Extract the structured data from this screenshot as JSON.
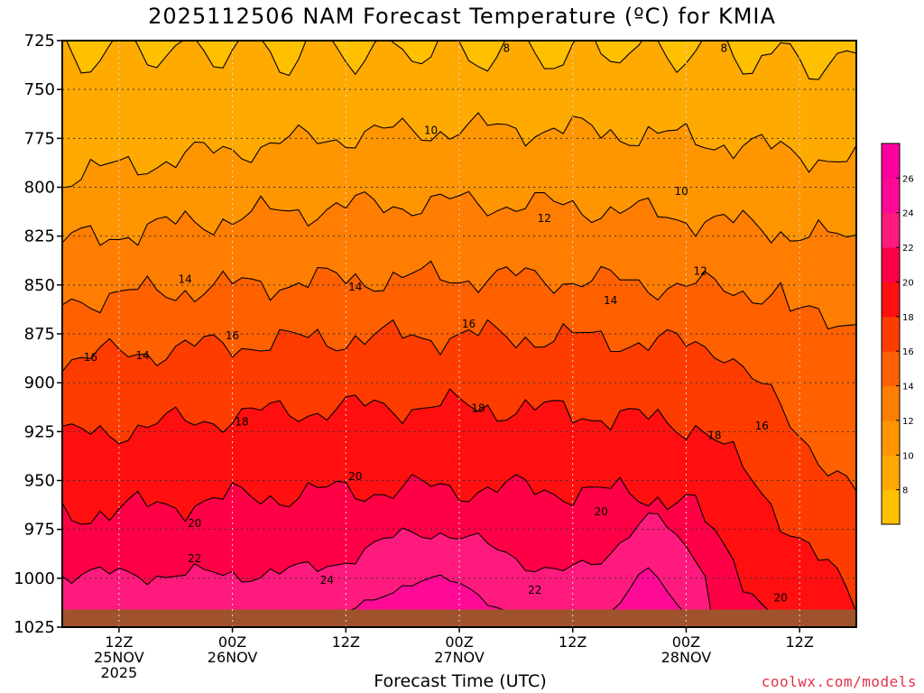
{
  "title": "2025112506 NAM Forecast Temperature (ºC) for KMIA",
  "credit": "coolwx.com/models",
  "chart_data": {
    "type": "contour",
    "title": "2025112506 NAM Forecast Temperature (ºC) for KMIA",
    "xlabel": "Forecast Time (UTC)",
    "ylabel": "",
    "y_reversed": true,
    "grid": true,
    "ylim": [
      1025,
      725
    ],
    "yticks": [
      725,
      750,
      775,
      800,
      825,
      850,
      875,
      900,
      925,
      950,
      975,
      1000,
      1025
    ],
    "xlim_hours": [
      6,
      90
    ],
    "xticks": [
      {
        "hour": 12,
        "lines": [
          "12Z",
          "25NOV",
          "2025"
        ]
      },
      {
        "hour": 24,
        "lines": [
          "00Z",
          "26NOV"
        ]
      },
      {
        "hour": 36,
        "lines": [
          "12Z"
        ]
      },
      {
        "hour": 48,
        "lines": [
          "00Z",
          "27NOV"
        ]
      },
      {
        "hour": 60,
        "lines": [
          "12Z"
        ]
      },
      {
        "hour": 72,
        "lines": [
          "00Z",
          "28NOV"
        ]
      },
      {
        "hour": 84,
        "lines": [
          "12Z"
        ]
      }
    ],
    "colorbar": {
      "levels": [
        8,
        10,
        12,
        14,
        16,
        18,
        20,
        22,
        24,
        26
      ],
      "colors": [
        "#ffc000",
        "#ffaa00",
        "#ff9500",
        "#ff7d00",
        "#ff6000",
        "#ff3c00",
        "#ff0f0f",
        "#ff0047",
        "#ff1a7d",
        "#ff0a96",
        "#ff009f"
      ]
    },
    "contour_levels": [
      8,
      10,
      12,
      14,
      16,
      18,
      20,
      22,
      24
    ],
    "contour_labels": [
      {
        "text": "8",
        "hour": 53,
        "p": 729
      },
      {
        "text": "8",
        "hour": 76,
        "p": 729
      },
      {
        "text": "10",
        "hour": 45,
        "p": 771
      },
      {
        "text": "10",
        "hour": 71.5,
        "p": 802
      },
      {
        "text": "12",
        "hour": 57,
        "p": 816
      },
      {
        "text": "12",
        "hour": 73.5,
        "p": 843
      },
      {
        "text": "14",
        "hour": 19,
        "p": 847
      },
      {
        "text": "14",
        "hour": 37,
        "p": 851
      },
      {
        "text": "14",
        "hour": 64,
        "p": 858
      },
      {
        "text": "14",
        "hour": 14.5,
        "p": 886
      },
      {
        "text": "16",
        "hour": 9,
        "p": 887
      },
      {
        "text": "16",
        "hour": 24,
        "p": 876
      },
      {
        "text": "16",
        "hour": 49,
        "p": 870
      },
      {
        "text": "16",
        "hour": 80,
        "p": 922
      },
      {
        "text": "18",
        "hour": 25,
        "p": 920
      },
      {
        "text": "18",
        "hour": 50,
        "p": 913
      },
      {
        "text": "18",
        "hour": 75,
        "p": 927
      },
      {
        "text": "20",
        "hour": 37,
        "p": 948
      },
      {
        "text": "20",
        "hour": 20,
        "p": 972
      },
      {
        "text": "20",
        "hour": 63,
        "p": 966
      },
      {
        "text": "20",
        "hour": 82,
        "p": 1010
      },
      {
        "text": "22",
        "hour": 20,
        "p": 990
      },
      {
        "text": "22",
        "hour": 56,
        "p": 1006
      },
      {
        "text": "24",
        "hour": 34,
        "p": 1001
      }
    ],
    "ground_level_hpa": 1016,
    "ground_color": "#a0522d"
  }
}
